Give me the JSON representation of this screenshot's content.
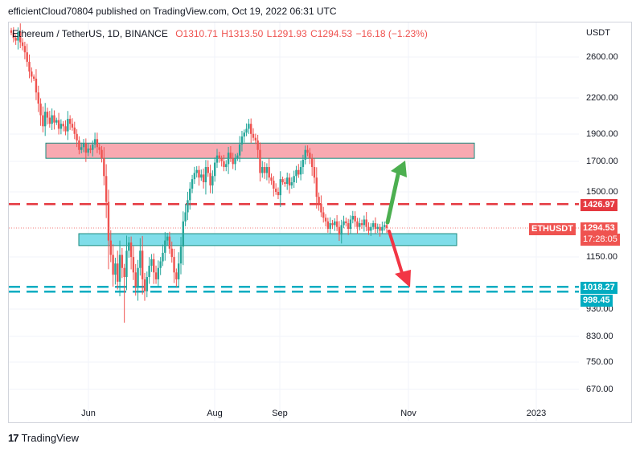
{
  "header": {
    "publisher_line": "efficientCloud70804 published on TradingView.com, Oct 19, 2022 06:31 UTC"
  },
  "symbol": {
    "name": "Ethereum / TetherUS, 1D, BINANCE",
    "o": "O1310.71",
    "h": "H1313.50",
    "l": "L1291.93",
    "c": "C1294.53",
    "change": "−16.18 (−1.23%)"
  },
  "axis": {
    "currency": "USDT",
    "price_labels": [
      "2600.00",
      "2200.00",
      "1900.00",
      "1700.00",
      "1500.00",
      "1150.00",
      "930.00",
      "830.00",
      "750.00",
      "670.00"
    ],
    "time_labels": [
      "Jun",
      "Aug",
      "Sep",
      "Nov",
      "2023"
    ]
  },
  "badges": {
    "resistance_line": "1426.97",
    "ticker": "ETHUSDT",
    "last_price": "1294.53",
    "countdown": "17:28:05",
    "support_line_1": "1018.27",
    "support_line_2": "998.45"
  },
  "footer": {
    "brand": "TradingView"
  },
  "colors": {
    "up": "#26a69a",
    "down": "#ef5350",
    "resistance_zone": "#f8a9b1",
    "support_zone": "#7fdde9",
    "red_dashed": "#e53940",
    "cyan_dashed": "#00acc1",
    "bull_arrow": "#4caf50",
    "bear_arrow": "#f23645"
  },
  "chart_data": {
    "type": "candlestick",
    "symbol": "ETHUSDT",
    "interval": "1D",
    "exchange": "BINANCE",
    "x_axis_ticks": [
      "Jun",
      "Aug",
      "Sep",
      "Nov",
      "2023"
    ],
    "y_axis_ticks": [
      2600,
      2200,
      1900,
      1700,
      1500,
      1150,
      930,
      830,
      750,
      670
    ],
    "y_scale": "log",
    "ylim": [
      640,
      2850
    ],
    "last": {
      "open": 1310.71,
      "high": 1313.5,
      "low": 1291.93,
      "close": 1294.53,
      "change": -16.18,
      "change_pct": -1.23
    },
    "horizontal_lines": [
      {
        "price": 1426.97,
        "style": "dashed",
        "color": "red"
      },
      {
        "price": 1018.27,
        "style": "dashed",
        "color": "cyan"
      },
      {
        "price": 998.45,
        "style": "dashed",
        "color": "cyan"
      }
    ],
    "zones": [
      {
        "name": "resistance",
        "price_top": 1830,
        "price_bottom": 1720,
        "from": "May 12",
        "to": "Dec 5"
      },
      {
        "name": "support",
        "price_top": 1265,
        "price_bottom": 1205,
        "from": "May 23",
        "to": "Dec 1"
      }
    ],
    "arrows": [
      {
        "direction": "up",
        "from_price": 1300,
        "to_price": 1700
      },
      {
        "direction": "down",
        "from_price": 1290,
        "to_price": 1005
      }
    ],
    "candles_close": [
      2870,
      2810,
      2780,
      2880,
      2760,
      2720,
      2650,
      2550,
      2450,
      2400,
      2380,
      2250,
      2150,
      2050,
      1960,
      2080,
      2030,
      1980,
      2050,
      1990,
      2010,
      1940,
      1980,
      1960,
      1920,
      2020,
      1980,
      1950,
      1900,
      1850,
      1780,
      1800,
      1830,
      1760,
      1790,
      1780,
      1820,
      1860,
      1800,
      1780,
      1720,
      1600,
      1440,
      1230,
      1160,
      1070,
      1120,
      1040,
      1160,
      1100,
      1060,
      1180,
      1220,
      1150,
      1080,
      1020,
      1100,
      1180,
      1050,
      1000,
      1060,
      1110,
      1140,
      1080,
      1050,
      1100,
      1130,
      1170,
      1230,
      1250,
      1190,
      1150,
      1080,
      1050,
      1120,
      1200,
      1330,
      1380,
      1450,
      1520,
      1580,
      1620,
      1640,
      1590,
      1610,
      1560,
      1660,
      1620,
      1540,
      1600,
      1690,
      1740,
      1720,
      1700,
      1660,
      1680,
      1760,
      1720,
      1680,
      1720,
      1740,
      1820,
      1880,
      1910,
      1940,
      1980,
      1900,
      1870,
      1850,
      1780,
      1620,
      1660,
      1620,
      1660,
      1590,
      1570,
      1520,
      1500,
      1480,
      1580,
      1560,
      1550,
      1590,
      1540,
      1560,
      1600,
      1640,
      1610,
      1660,
      1710,
      1780,
      1760,
      1720,
      1660,
      1590,
      1470,
      1430,
      1380,
      1350,
      1330,
      1290,
      1320,
      1310,
      1330,
      1300,
      1260,
      1310,
      1330,
      1320,
      1290,
      1340,
      1360,
      1330,
      1300,
      1320,
      1310,
      1340,
      1300,
      1280,
      1300,
      1320,
      1290,
      1300,
      1280,
      1300,
      1310,
      1295
    ]
  }
}
